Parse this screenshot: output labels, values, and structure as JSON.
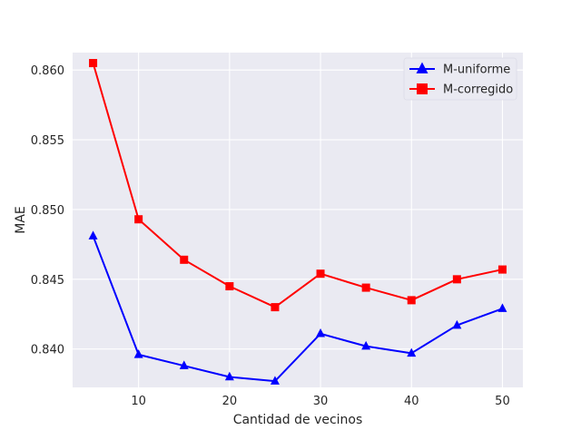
{
  "chart_data": {
    "type": "line",
    "title": "",
    "xlabel": "Cantidad de vecinos",
    "ylabel": "MAE",
    "x": [
      5,
      10,
      15,
      20,
      25,
      30,
      35,
      40,
      45,
      50
    ],
    "xlim": [
      2.75,
      52.25
    ],
    "ylim": [
      0.83725,
      0.86125
    ],
    "xticks": [
      10,
      20,
      30,
      40,
      50
    ],
    "yticks": [
      0.84,
      0.845,
      0.85,
      0.855,
      0.86
    ],
    "xtick_labels": [
      "10",
      "20",
      "30",
      "40",
      "50"
    ],
    "ytick_labels": [
      "0.840",
      "0.845",
      "0.850",
      "0.855",
      "0.860"
    ],
    "grid": true,
    "legend_position": "top-right",
    "series": [
      {
        "name": "M-uniforme",
        "color": "#0000ff",
        "marker": "triangle",
        "values": [
          0.8481,
          0.8396,
          0.8388,
          0.838,
          0.8377,
          0.8411,
          0.8402,
          0.8397,
          0.8417,
          0.8429
        ]
      },
      {
        "name": "M-corregido",
        "color": "#ff0000",
        "marker": "square",
        "values": [
          0.8605,
          0.8493,
          0.8464,
          0.8445,
          0.843,
          0.8454,
          0.8444,
          0.8435,
          0.845,
          0.8457
        ]
      }
    ]
  },
  "colors": {
    "plot_background": "#eaeaf2",
    "grid": "#ffffff"
  }
}
